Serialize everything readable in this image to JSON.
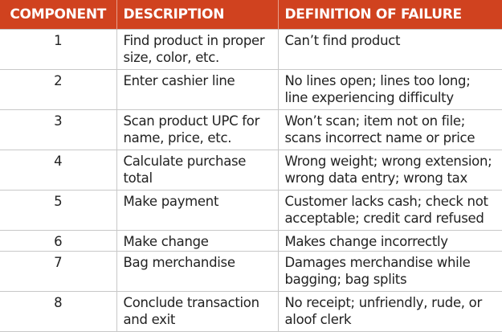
{
  "header_color": "#D0421F",
  "headers": [
    "COMPONENT",
    "DESCRIPTION",
    "DEFINITION OF FAILURE"
  ],
  "rows": [
    {
      "component": "1",
      "description": "Find product in proper size, color, etc.",
      "failure": "Can’t find product"
    },
    {
      "component": "2",
      "description": "Enter cashier line",
      "failure": "No lines open; lines too long; line experiencing difficulty"
    },
    {
      "component": "3",
      "description": "Scan product UPC for name, price, etc.",
      "failure": "Won’t scan; item not on file; scans incorrect name or price"
    },
    {
      "component": "4",
      "description": "Calculate purchase total",
      "failure": "Wrong weight; wrong extension; wrong data entry; wrong tax"
    },
    {
      "component": "5",
      "description": "Make payment",
      "failure": "Customer lacks cash; check not acceptable; credit card refused"
    },
    {
      "component": "6",
      "description": "Make change",
      "failure": "Makes change incorrectly"
    },
    {
      "component": "7",
      "description": "Bag merchandise",
      "failure": "Damages merchandise while bagging; bag splits"
    },
    {
      "component": "8",
      "description": "Conclude transaction and exit",
      "failure": "No receipt; unfriendly, rude, or aloof clerk"
    }
  ]
}
